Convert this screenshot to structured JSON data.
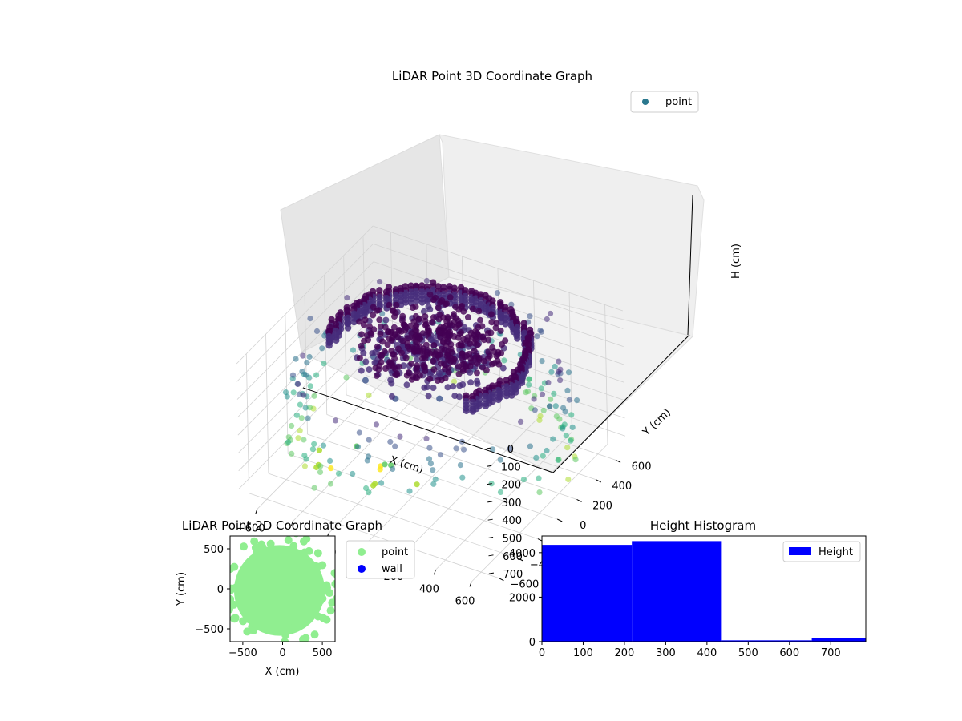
{
  "chart_data": [
    {
      "type": "scatter",
      "title": "LiDAR Point 3D Coordinate Graph",
      "xlabel": "X (cm)",
      "ylabel": "Y (cm)",
      "zlabel": "H (cm)",
      "xlim": [
        -700,
        700
      ],
      "ylim": [
        -700,
        700
      ],
      "zlim": [
        0,
        780
      ],
      "z_inverted": true,
      "colormap": "viridis",
      "x_ticks": [
        "−600",
        "−400",
        "−200",
        "0",
        "200",
        "400",
        "600"
      ],
      "y_ticks": [
        "−600",
        "−400",
        "−200",
        "0",
        "200",
        "400",
        "600"
      ],
      "z_ticks": [
        "0",
        "100",
        "200",
        "300",
        "400",
        "500",
        "600",
        "700"
      ],
      "grid": true,
      "legend": {
        "placement": "upper-right",
        "entries": [
          {
            "label": "point",
            "color": "#2a788e"
          }
        ]
      },
      "series": [
        {
          "name": "point",
          "shapes": [
            {
              "kind": "inner ring wall",
              "radius_cm": [
                450,
                520
              ],
              "angle_deg": [
                -40,
                200
              ],
              "height_cm": [
                20,
                120
              ]
            },
            {
              "kind": "outer wall samples",
              "radius_cm": [
                600,
                720
              ],
              "angle_deg": [
                0,
                360
              ],
              "height_cm": [
                100,
                700
              ]
            },
            {
              "kind": "central clutter",
              "radius_cm": [
                0,
                380
              ],
              "angle_deg": [
                0,
                360
              ],
              "height_cm": [
                0,
                750
              ]
            }
          ]
        }
      ]
    },
    {
      "type": "scatter",
      "title": "LiDAR Point 2D Coordinate Graph",
      "xlabel": "X (cm)",
      "ylabel": "Y (cm)",
      "xlim": [
        -660,
        660
      ],
      "ylim": [
        -660,
        660
      ],
      "x_ticks": [
        "−500",
        "0",
        "500"
      ],
      "y_ticks": [
        "−500",
        "0",
        "500"
      ],
      "legend": {
        "placement": "outside-right",
        "entries": [
          {
            "label": "point",
            "color": "#90ee90"
          },
          {
            "label": "wall",
            "color": "#0000ff"
          }
        ]
      },
      "series": [
        {
          "name": "point",
          "color": "#90ee90",
          "filled_disk_center": [
            -40,
            -20
          ],
          "filled_disk_radius_cm": 570
        },
        {
          "name": "wall",
          "color": "#0000ff",
          "values": []
        }
      ]
    },
    {
      "type": "bar",
      "title": "Height Histogram",
      "xlabel": "",
      "ylabel": "",
      "bins": [
        [
          0,
          218
        ],
        [
          218,
          436
        ],
        [
          436,
          654
        ],
        [
          654,
          785
        ]
      ],
      "values": [
        4350,
        4520,
        60,
        150
      ],
      "xlim": [
        0,
        785
      ],
      "ylim": [
        0,
        4750
      ],
      "x_ticks": [
        "0",
        "100",
        "200",
        "300",
        "400",
        "500",
        "600",
        "700"
      ],
      "y_ticks": [
        "0",
        "2000",
        "4000"
      ],
      "color": "#0000ff",
      "legend": {
        "placement": "upper-right",
        "entries": [
          {
            "label": "Height",
            "color": "#0000ff"
          }
        ]
      }
    }
  ]
}
